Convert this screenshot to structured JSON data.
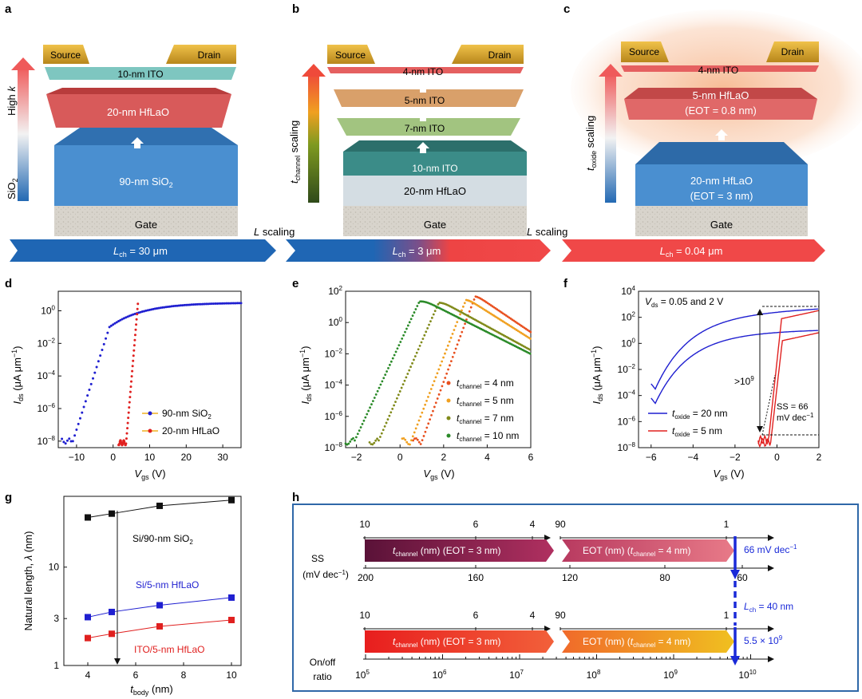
{
  "panels": {
    "a": {
      "letter": "a",
      "source": "Source",
      "drain": "Drain",
      "ito": "10-nm ITO",
      "dielectric": "20-nm HfLaO",
      "substrate": "90-nm SiO",
      "substrate_sub": "2",
      "gate": "Gate",
      "arrow_top": "High ",
      "arrow_top_k": "k",
      "arrow_bottom": "SiO",
      "arrow_bottom_sub": "2"
    },
    "b": {
      "letter": "b",
      "source": "Source",
      "drain": "Drain",
      "layers": [
        "4-nm ITO",
        "5-nm ITO",
        "7-nm ITO",
        "10-nm ITO"
      ],
      "dielectric": "20-nm HfLaO",
      "gate": "Gate",
      "axis_t": "t",
      "axis_sub": "channel",
      "axis_rest": " scaling"
    },
    "c": {
      "letter": "c",
      "source": "Source",
      "drain": "Drain",
      "ito": "4-nm ITO",
      "top_dielectric": "5-nm HfLaO",
      "top_eot": "(EOT = 0.8 nm)",
      "bottom_dielectric": "20-nm HfLaO",
      "bottom_eot": "(EOT = 3 nm)",
      "gate": "Gate",
      "axis_t": "t",
      "axis_sub": "oxide",
      "axis_rest": " scaling"
    },
    "banner": {
      "labels": [
        "L",
        "L",
        "L"
      ],
      "subs": [
        "ch",
        "ch",
        "ch"
      ],
      "values": [
        " = 30 μm",
        " = 3 μm",
        " = 0.04 μm"
      ],
      "scaling_italic": "L",
      "scaling_text": " scaling"
    },
    "d": {
      "letter": "d",
      "ylabel_i": "I",
      "ylabel_sub": "ds",
      "ylabel_rest": " (μA μm",
      "ylabel_exp": "−1",
      "ylabel_end": ")",
      "xlabel_v": "V",
      "xlabel_sub": "gs",
      "xlabel_rest": " (V)",
      "legend": [
        "90-nm SiO",
        "20-nm HfLaO"
      ],
      "legend_sub": [
        "2",
        ""
      ],
      "xticks": [
        "−10",
        "0",
        "10",
        "20",
        "30"
      ],
      "yticks": [
        "10",
        "10",
        "10",
        "10",
        "10"
      ],
      "yexps": [
        "0",
        "−2",
        "−4",
        "−6",
        "−8"
      ]
    },
    "e": {
      "letter": "e",
      "xticks": [
        "−2",
        "0",
        "2",
        "4",
        "6"
      ],
      "yticks": [
        "10",
        "10",
        "10",
        "10",
        "10",
        "10"
      ],
      "yexps": [
        "2",
        "0",
        "−2",
        "−4",
        "−6",
        "−8"
      ],
      "legend_t": "t",
      "legend_sub": "channel",
      "legend_vals": [
        " = 4 nm",
        " = 5 nm",
        " = 7 nm",
        " = 10 nm"
      ]
    },
    "f": {
      "letter": "f",
      "vds_text": " = 0.05 and 2 V",
      "vds_v": "V",
      "vds_sub": "ds",
      "ratio": ">10",
      "ratio_exp": "9",
      "ss1": "SS = 66",
      "ss2": "mV dec",
      "ss2_exp": "−1",
      "xticks": [
        "−6",
        "−4",
        "−2",
        "0",
        "2"
      ],
      "yticks": [
        "10",
        "10",
        "10",
        "10",
        "10",
        "10",
        "10"
      ],
      "yexps": [
        "4",
        "2",
        "0",
        "−2",
        "−4",
        "−6",
        "−8"
      ],
      "legend_t": "t",
      "legend_sub": "oxide",
      "legend_vals": [
        " = 20 nm",
        " = 5 nm"
      ]
    },
    "g": {
      "letter": "g",
      "ylabel": "Natural length, ",
      "ylabel_lambda": "λ",
      "ylabel_end": " (nm)",
      "xlabel_t": "t",
      "xlabel_sub": "body",
      "xlabel_rest": " (nm)",
      "xticks": [
        "4",
        "6",
        "8",
        "10"
      ],
      "yticks": [
        "1",
        "3",
        "10"
      ],
      "series_labels": [
        "Si/90-nm SiO",
        "Si/5-nm HfLaO",
        "ITO/5-nm HfLaO"
      ],
      "series_sub": [
        "2",
        "",
        ""
      ]
    },
    "h": {
      "letter": "h",
      "ss_label1": "SS",
      "ss_label2": "(mV dec",
      "ss_label2_exp": "−1",
      "ss_label2_end": ")",
      "onoff_label1": "On/off",
      "onoff_label2": "ratio",
      "top_ticks": [
        "10",
        "6",
        "4",
        "90",
        "1"
      ],
      "bar_t": "t",
      "bar_sub": "channel",
      "bar1_text": " (nm) (EOT = 3 nm)",
      "bar2_text_a": "EOT (nm) (",
      "bar2_text_b": " = 4 nm)",
      "ss_ticks": [
        "200",
        "160",
        "120",
        "80",
        "60"
      ],
      "ss_value": "66 mV dec",
      "ss_value_exp": "−1",
      "lch_l": "L",
      "lch_sub": "ch",
      "lch_rest": " = 40 nm",
      "onoff_value": "5.5 × 10",
      "onoff_value_exp": "9",
      "onoff_ticks": [
        "10",
        "10",
        "10",
        "10",
        "10",
        "10"
      ],
      "onoff_exps": [
        "5",
        "6",
        "7",
        "8",
        "9",
        "10"
      ]
    }
  },
  "colors": {
    "blue": "#1f5fb0",
    "red": "#e8302a",
    "curve_blue": "#1f1fd0",
    "curve_red": "#e0201f",
    "frame_blue": "#2f68a8"
  }
}
